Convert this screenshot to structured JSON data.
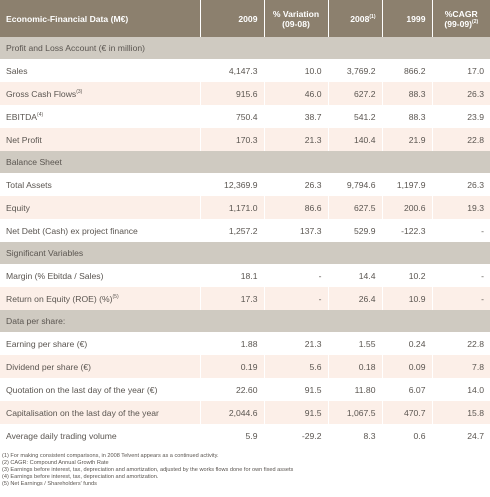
{
  "header": [
    {
      "lines": [
        "Economic-Financial Data (M€)"
      ]
    },
    {
      "lines": [
        "2009"
      ]
    },
    {
      "lines": [
        "% Variation",
        "(09-08)"
      ]
    },
    {
      "lines": [
        "2008"
      ],
      "note": "(1)"
    },
    {
      "lines": [
        "1999"
      ]
    },
    {
      "lines": [
        "%CAGR",
        "(99-09)"
      ],
      "note": "(2)"
    }
  ],
  "sections": [
    {
      "title": "Profit and Loss Account (€ in million)",
      "rows": [
        {
          "label": "Sales",
          "cells": [
            "4,147.3",
            "10.0",
            "3,769.2",
            "866.2",
            "17.0"
          ]
        },
        {
          "label": "Gross Cash Flows",
          "note": "(3)",
          "cells": [
            "915.6",
            "46.0",
            "627.2",
            "88.3",
            "26.3"
          ]
        },
        {
          "label": "EBITDA",
          "note": "(4)",
          "cells": [
            "750.4",
            "38.7",
            "541.2",
            "88.3",
            "23.9"
          ]
        },
        {
          "label": "Net Profit",
          "cells": [
            "170.3",
            "21.3",
            "140.4",
            "21.9",
            "22.8"
          ]
        }
      ]
    },
    {
      "title": "Balance Sheet",
      "rows": [
        {
          "label": "Total Assets",
          "cells": [
            "12,369.9",
            "26.3",
            "9,794.6",
            "1,197.9",
            "26.3"
          ]
        },
        {
          "label": "Equity",
          "cells": [
            "1,171.0",
            "86.6",
            "627.5",
            "200.6",
            "19.3"
          ]
        },
        {
          "label": "Net Debt (Cash) ex project finance",
          "cells": [
            "1,257.2",
            "137.3",
            "529.9",
            "-122.3",
            "-"
          ]
        }
      ]
    },
    {
      "title": "Significant Variables",
      "rows": [
        {
          "label": "Margin (% Ebitda / Sales)",
          "cells": [
            "18.1",
            "-",
            "14.4",
            "10.2",
            "-"
          ]
        },
        {
          "label": "Return on Equity (ROE) (%)",
          "note": "(5)",
          "cells": [
            "17.3",
            "-",
            "26.4",
            "10.9",
            "-"
          ]
        }
      ]
    },
    {
      "title": "Data per share:",
      "rows": [
        {
          "label": "Earning per share (€)",
          "cells": [
            "1.88",
            "21.3",
            "1.55",
            "0.24",
            "22.8"
          ]
        },
        {
          "label": "Dividend per share (€)",
          "cells": [
            "0.19",
            "5.6",
            "0.18",
            "0.09",
            "7.8"
          ]
        },
        {
          "label": "Quotation on the last day of the year (€)",
          "cells": [
            "22.60",
            "91.5",
            "11.80",
            "6.07",
            "14.0"
          ]
        },
        {
          "label": "Capitalisation on the last day of the year",
          "cells": [
            "2,044.6",
            "91.5",
            "1,067.5",
            "470.7",
            "15.8"
          ]
        },
        {
          "label": "Average daily trading volume",
          "cells": [
            "5.9",
            "-29.2",
            "8.3",
            "0.6",
            "24.7"
          ]
        }
      ]
    }
  ],
  "footnotes": [
    "(1) For making consistent comparisons, in 2008 Telvent appears as a continued activity.",
    "(2) CAGR: Compound Annual Growth Rate",
    "(3) Earnings before interest, tax, depreciation and amortization, adjusted by the works flows done for own fixed assets",
    "(4) Earnings before interest, tax, depreciation and amortization.",
    "(5) Net Earnings / Shareholders' funds"
  ]
}
